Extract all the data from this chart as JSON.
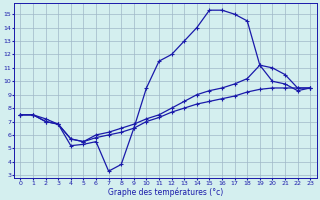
{
  "xlabel": "Graphe des températures (°c)",
  "bg_color": "#d4efef",
  "grid_color": "#a0b8c8",
  "line_color": "#1a1aaa",
  "x_ticks": [
    0,
    1,
    2,
    3,
    4,
    5,
    6,
    7,
    8,
    9,
    10,
    11,
    12,
    13,
    14,
    15,
    16,
    17,
    18,
    19,
    20,
    21,
    22,
    23
  ],
  "y_ticks": [
    3,
    4,
    5,
    6,
    7,
    8,
    9,
    10,
    11,
    12,
    13,
    14,
    15
  ],
  "xlim": [
    -0.5,
    23.5
  ],
  "ylim": [
    2.8,
    15.8
  ],
  "line1_x": [
    0,
    1,
    2,
    3,
    4,
    5,
    6,
    7,
    8,
    9,
    10,
    11,
    12,
    13,
    14,
    15,
    16,
    17,
    18,
    19,
    20,
    21,
    22,
    23
  ],
  "line1_y": [
    7.5,
    7.5,
    7.0,
    6.8,
    5.2,
    5.3,
    5.5,
    3.3,
    3.8,
    6.5,
    9.5,
    11.5,
    12.0,
    13.0,
    14.0,
    15.3,
    15.3,
    15.0,
    14.5,
    11.2,
    10.0,
    9.8,
    9.3,
    9.5
  ],
  "line2_x": [
    0,
    1,
    2,
    3,
    4,
    5,
    6,
    7,
    8,
    9,
    10,
    11,
    12,
    13,
    14,
    15,
    16,
    17,
    18,
    19,
    20,
    21,
    22,
    23
  ],
  "line2_y": [
    7.5,
    7.5,
    7.2,
    6.8,
    5.7,
    5.5,
    6.0,
    6.2,
    6.5,
    6.8,
    7.2,
    7.5,
    8.0,
    8.5,
    9.0,
    9.3,
    9.5,
    9.8,
    10.2,
    11.2,
    11.0,
    10.5,
    9.5,
    9.5
  ],
  "line3_x": [
    0,
    1,
    2,
    3,
    4,
    5,
    6,
    7,
    8,
    9,
    10,
    11,
    12,
    13,
    14,
    15,
    16,
    17,
    18,
    19,
    20,
    21,
    22,
    23
  ],
  "line3_y": [
    7.5,
    7.5,
    7.0,
    6.8,
    5.7,
    5.5,
    5.8,
    6.0,
    6.2,
    6.5,
    7.0,
    7.3,
    7.7,
    8.0,
    8.3,
    8.5,
    8.7,
    8.9,
    9.2,
    9.4,
    9.5,
    9.5,
    9.5,
    9.5
  ]
}
